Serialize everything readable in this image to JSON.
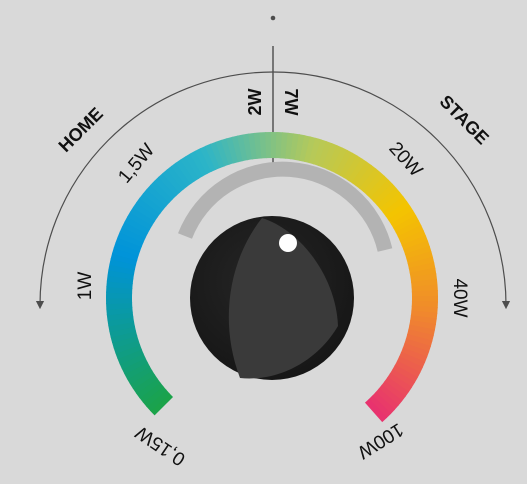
{
  "zones": {
    "left": "HOME",
    "right": "STAGE"
  },
  "center_labels": {
    "left": "2W",
    "right": "7W"
  },
  "scale_labels": [
    "0,15W",
    "1W",
    "1,5W",
    "20W",
    "40W",
    "100W"
  ],
  "knob": {
    "level": 0.5
  },
  "colors": {
    "background": "#d9d9d9",
    "gradient_start": "#1ba34a",
    "gradient_mid1": "#0093d9",
    "gradient_mid2": "#2cb5c8",
    "gradient_mid3": "#b5c95a",
    "gradient_mid4": "#f4c400",
    "gradient_mid5": "#f08c2a",
    "gradient_end": "#e8336e",
    "knob_body": "#1c1c1c",
    "knob_highlight": "#3a3a3a",
    "indicator": "#ffffff",
    "shadow_arc": "#b3b3b3",
    "ink": "#4d4d4d"
  }
}
